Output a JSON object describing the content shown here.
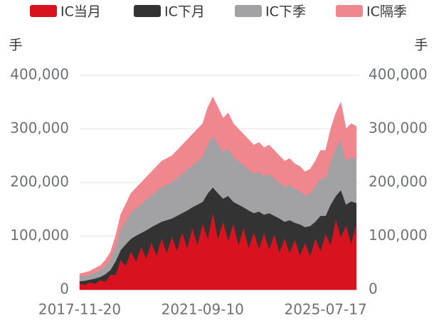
{
  "chart_data": {
    "type": "area",
    "stacked": true,
    "yunit": "手",
    "y2unit": "手",
    "categories": [
      "2017-11-20",
      null,
      null,
      null,
      null,
      null,
      null,
      null,
      null,
      null,
      null,
      null,
      null,
      null,
      null,
      null,
      null,
      null,
      null,
      null,
      null,
      null,
      null,
      null,
      "2021-09-10",
      null,
      null,
      null,
      null,
      null,
      null,
      null,
      null,
      null,
      null,
      null,
      null,
      null,
      null,
      null,
      null,
      null,
      null,
      null,
      null,
      null,
      null,
      null,
      "2025-07-17",
      null,
      null,
      null,
      null,
      null,
      null
    ],
    "series": [
      {
        "name": "IC当月",
        "color": "#d9121f",
        "values": [
          12000,
          9000,
          14000,
          11000,
          18000,
          15000,
          28000,
          28000,
          56000,
          45000,
          72000,
          53000,
          80000,
          59000,
          88000,
          64000,
          96000,
          69000,
          100000,
          73000,
          108000,
          78000,
          116000,
          84000,
          124000,
          95000,
          144000,
          95000,
          128000,
          92000,
          124000,
          84000,
          116000,
          78000,
          108000,
          77000,
          106000,
          76000,
          104000,
          70000,
          96000,
          69000,
          94000,
          64000,
          88000,
          63000,
          96000,
          73000,
          104000,
          84000,
          132000,
          98000,
          120000,
          87000,
          122000
        ]
      },
      {
        "name": "IC下月",
        "color": "#333333",
        "values": [
          4000,
          8000,
          5000,
          10000,
          6000,
          14000,
          9000,
          25000,
          18000,
          40000,
          23000,
          48000,
          26000,
          52000,
          29000,
          58000,
          31000,
          61000,
          33000,
          65000,
          35000,
          70000,
          38000,
          75000,
          40000,
          85000,
          47000,
          85000,
          42000,
          83000,
          40000,
          75000,
          38000,
          70000,
          35000,
          69000,
          34000,
          67000,
          34000,
          63000,
          31000,
          61000,
          31000,
          58000,
          29000,
          56000,
          31000,
          65000,
          34000,
          75000,
          43000,
          88000,
          39000,
          78000,
          40000
        ]
      },
      {
        "name": "IC下季",
        "color": "#a2a2a4",
        "values": [
          8000,
          9000,
          9000,
          11000,
          12000,
          15000,
          19000,
          27000,
          38000,
          43000,
          49000,
          51000,
          54000,
          57000,
          59000,
          62000,
          65000,
          66000,
          67000,
          70000,
          73000,
          76000,
          78000,
          81000,
          84000,
          92000,
          97000,
          92000,
          86000,
          89000,
          84000,
          81000,
          78000,
          76000,
          73000,
          74000,
          72000,
          73000,
          70000,
          67000,
          65000,
          66000,
          63000,
          62000,
          59000,
          61000,
          65000,
          70000,
          70000,
          81000,
          89000,
          94000,
          81000,
          83000,
          82000
        ]
      },
      {
        "name": "IC隔季",
        "color": "#f0868e",
        "values": [
          6000,
          6000,
          7000,
          8000,
          9000,
          11000,
          14000,
          20000,
          28000,
          32000,
          36000,
          38000,
          40000,
          42000,
          44000,
          46000,
          48000,
          49000,
          50000,
          52000,
          54000,
          56000,
          58000,
          60000,
          62000,
          68000,
          72000,
          68000,
          64000,
          66000,
          62000,
          60000,
          58000,
          56000,
          54000,
          55000,
          53000,
          54000,
          52000,
          50000,
          48000,
          49000,
          47000,
          46000,
          44000,
          45000,
          48000,
          52000,
          52000,
          60000,
          66000,
          70000,
          60000,
          62000,
          61000
        ]
      }
    ],
    "ylim": [
      0,
      400000
    ],
    "yticks": [
      0,
      {
        "value": 100000,
        "label": "100,000"
      },
      {
        "value": 200000,
        "label": "200,000"
      },
      {
        "value": 300000,
        "label": "300,000"
      },
      {
        "value": 400000,
        "label": "400,000"
      }
    ],
    "y2lim": [
      0,
      400000
    ],
    "y2ticks": [
      0,
      {
        "value": 100000,
        "label": "100,000"
      },
      {
        "value": 200000,
        "label": "200,000"
      },
      {
        "value": 300000,
        "label": "300,000"
      },
      {
        "value": 400000,
        "label": "400,000"
      }
    ],
    "grid": true
  }
}
